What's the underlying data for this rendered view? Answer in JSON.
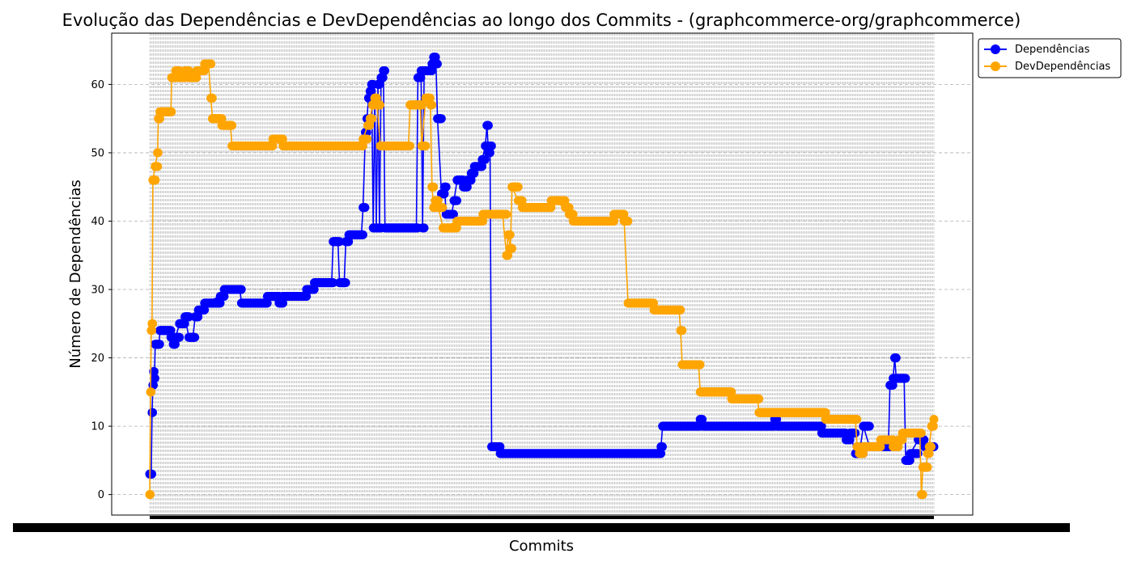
{
  "chart_data": {
    "type": "line",
    "title": "Evolução das Dependências e DevDependências ao longo dos Commits - (graphcommerce-org/graphcommerce)",
    "xlabel": "Commits",
    "ylabel": "Número de Dependências",
    "ylim": [
      -3,
      67.5
    ],
    "yticks": [
      "0",
      "10",
      "20",
      "30",
      "40",
      "50",
      "60"
    ],
    "grid": true,
    "legend_position": "upper-right-outside",
    "x_range": [
      0,
      1000
    ],
    "series": [
      {
        "name": "Dependências",
        "color": "#0000ff",
        "points": [
          [
            0,
            3
          ],
          [
            2,
            3
          ],
          [
            3,
            12
          ],
          [
            4,
            16
          ],
          [
            5,
            18
          ],
          [
            6,
            17
          ],
          [
            7,
            22
          ],
          [
            12,
            22
          ],
          [
            13,
            24
          ],
          [
            25,
            24
          ],
          [
            27,
            23
          ],
          [
            30,
            22
          ],
          [
            33,
            23
          ],
          [
            38,
            25
          ],
          [
            45,
            26
          ],
          [
            50,
            23
          ],
          [
            55,
            23
          ],
          [
            58,
            26
          ],
          [
            62,
            27
          ],
          [
            70,
            28
          ],
          [
            90,
            29
          ],
          [
            95,
            30
          ],
          [
            115,
            30
          ],
          [
            117,
            28
          ],
          [
            145,
            28
          ],
          [
            150,
            29
          ],
          [
            165,
            28
          ],
          [
            170,
            29
          ],
          [
            195,
            29
          ],
          [
            200,
            30
          ],
          [
            210,
            31
          ],
          [
            232,
            31
          ],
          [
            234,
            37
          ],
          [
            240,
            37
          ],
          [
            242,
            31
          ],
          [
            248,
            31
          ],
          [
            250,
            37
          ],
          [
            254,
            38
          ],
          [
            270,
            38
          ],
          [
            272,
            42
          ],
          [
            275,
            53
          ],
          [
            277,
            55
          ],
          [
            279,
            58
          ],
          [
            281,
            59
          ],
          [
            283,
            60
          ],
          [
            285,
            39
          ],
          [
            287,
            58
          ],
          [
            289,
            39
          ],
          [
            291,
            60
          ],
          [
            293,
            39
          ],
          [
            295,
            61
          ],
          [
            298,
            62
          ],
          [
            300,
            39
          ],
          [
            340,
            39
          ],
          [
            342,
            61
          ],
          [
            346,
            62
          ],
          [
            348,
            39
          ],
          [
            350,
            62
          ],
          [
            360,
            63
          ],
          [
            362,
            64
          ],
          [
            365,
            63
          ],
          [
            367,
            55
          ],
          [
            372,
            44
          ],
          [
            376,
            45
          ],
          [
            378,
            41
          ],
          [
            385,
            41
          ],
          [
            388,
            43
          ],
          [
            392,
            46
          ],
          [
            398,
            46
          ],
          [
            400,
            45
          ],
          [
            405,
            46
          ],
          [
            410,
            47
          ],
          [
            414,
            48
          ],
          [
            420,
            48
          ],
          [
            424,
            49
          ],
          [
            428,
            51
          ],
          [
            430,
            54
          ],
          [
            432,
            50
          ],
          [
            434,
            51
          ],
          [
            436,
            7
          ],
          [
            445,
            7
          ],
          [
            447,
            6
          ],
          [
            650,
            6
          ],
          [
            652,
            7
          ],
          [
            654,
            10
          ],
          [
            700,
            10
          ],
          [
            702,
            11
          ],
          [
            705,
            10
          ],
          [
            795,
            10
          ],
          [
            797,
            11
          ],
          [
            800,
            10
          ],
          [
            855,
            10
          ],
          [
            857,
            9
          ],
          [
            885,
            9
          ],
          [
            888,
            8
          ],
          [
            893,
            9
          ],
          [
            900,
            6
          ],
          [
            905,
            6
          ],
          [
            910,
            10
          ],
          [
            918,
            7
          ],
          [
            942,
            7
          ],
          [
            944,
            16
          ],
          [
            948,
            17
          ],
          [
            950,
            20
          ],
          [
            952,
            17
          ],
          [
            962,
            17
          ],
          [
            964,
            5
          ],
          [
            970,
            6
          ],
          [
            980,
            8
          ],
          [
            985,
            8
          ],
          [
            988,
            7
          ],
          [
            1000,
            7
          ]
        ]
      },
      {
        "name": "DevDependências",
        "color": "#ffa500",
        "points": [
          [
            0,
            0
          ],
          [
            1,
            15
          ],
          [
            2,
            24
          ],
          [
            3,
            25
          ],
          [
            4,
            46
          ],
          [
            7,
            48
          ],
          [
            10,
            50
          ],
          [
            11,
            55
          ],
          [
            13,
            56
          ],
          [
            27,
            56
          ],
          [
            28,
            61
          ],
          [
            33,
            62
          ],
          [
            38,
            61
          ],
          [
            45,
            62
          ],
          [
            50,
            61
          ],
          [
            60,
            62
          ],
          [
            70,
            63
          ],
          [
            75,
            63
          ],
          [
            78,
            58
          ],
          [
            80,
            55
          ],
          [
            90,
            55
          ],
          [
            92,
            54
          ],
          [
            103,
            54
          ],
          [
            105,
            51
          ],
          [
            155,
            51
          ],
          [
            157,
            52
          ],
          [
            170,
            51
          ],
          [
            270,
            51
          ],
          [
            272,
            52
          ],
          [
            278,
            54
          ],
          [
            281,
            55
          ],
          [
            284,
            57
          ],
          [
            287,
            58
          ],
          [
            290,
            57
          ],
          [
            294,
            51
          ],
          [
            330,
            51
          ],
          [
            332,
            57
          ],
          [
            345,
            57
          ],
          [
            347,
            51
          ],
          [
            352,
            58
          ],
          [
            358,
            57
          ],
          [
            360,
            45
          ],
          [
            362,
            42
          ],
          [
            364,
            43
          ],
          [
            368,
            42
          ],
          [
            374,
            39
          ],
          [
            392,
            40
          ],
          [
            420,
            40
          ],
          [
            425,
            41
          ],
          [
            450,
            41
          ],
          [
            455,
            35
          ],
          [
            457,
            38
          ],
          [
            460,
            36
          ],
          [
            462,
            45
          ],
          [
            470,
            43
          ],
          [
            475,
            42
          ],
          [
            510,
            42
          ],
          [
            512,
            43
          ],
          [
            530,
            42
          ],
          [
            535,
            41
          ],
          [
            540,
            40
          ],
          [
            590,
            40
          ],
          [
            592,
            41
          ],
          [
            605,
            40
          ],
          [
            610,
            28
          ],
          [
            640,
            28
          ],
          [
            643,
            27
          ],
          [
            675,
            27
          ],
          [
            677,
            24
          ],
          [
            679,
            19
          ],
          [
            700,
            19
          ],
          [
            702,
            15
          ],
          [
            740,
            15
          ],
          [
            742,
            14
          ],
          [
            775,
            14
          ],
          [
            777,
            12
          ],
          [
            860,
            12
          ],
          [
            862,
            11
          ],
          [
            900,
            11
          ],
          [
            902,
            7
          ],
          [
            905,
            6
          ],
          [
            910,
            7
          ],
          [
            930,
            7
          ],
          [
            932,
            8
          ],
          [
            940,
            8
          ],
          [
            948,
            7
          ],
          [
            955,
            8
          ],
          [
            960,
            9
          ],
          [
            982,
            9
          ],
          [
            984,
            0
          ],
          [
            986,
            4
          ],
          [
            990,
            4
          ],
          [
            992,
            6
          ],
          [
            994,
            7
          ],
          [
            997,
            10
          ],
          [
            1000,
            11
          ]
        ]
      }
    ]
  }
}
